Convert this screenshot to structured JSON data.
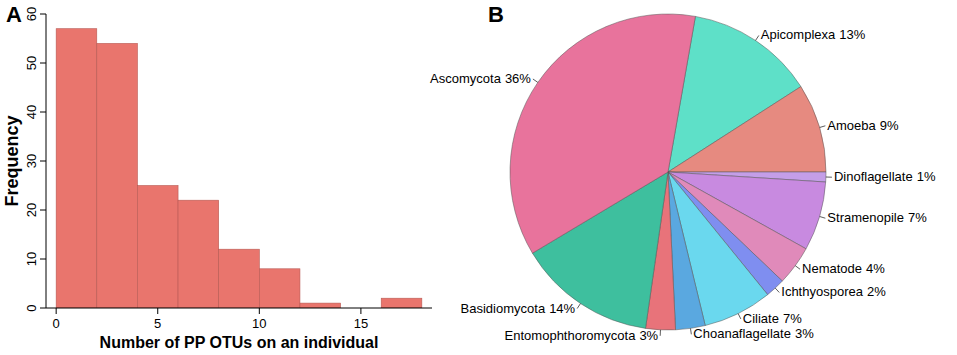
{
  "chart_data": [
    {
      "type": "histogram",
      "title": "A",
      "bins": [
        0,
        2,
        4,
        6,
        8,
        10,
        12,
        14,
        16,
        18
      ],
      "values": [
        57,
        54,
        25,
        22,
        12,
        8,
        1,
        0,
        2
      ],
      "color": "#e9756d",
      "x_label": "Number of PP OTUs on an individual",
      "y_label": "Frequency",
      "xlim": [
        -0.5,
        18.5
      ],
      "ylim": [
        0,
        60
      ],
      "xticks": [
        0,
        5,
        10,
        15
      ],
      "yticks": [
        0,
        10,
        20,
        30,
        40,
        50,
        60
      ],
      "grid": false
    },
    {
      "type": "pie",
      "title": "B",
      "categories": [
        "Apicomplexa",
        "Amoeba",
        "Dinoflagellate",
        "Stramenopile",
        "Nematode",
        "Ichthyosporea",
        "Ciliate",
        "Choanaflagellate",
        "Entomophthoromycota",
        "Basidiomycota",
        "Ascomycota"
      ],
      "values": [
        13,
        9,
        1,
        7,
        4,
        2,
        7,
        3,
        3,
        14,
        36
      ],
      "value_labels": [
        "13%",
        "9%",
        "1%",
        "7%",
        "4%",
        "2%",
        "7%",
        "3%",
        "3%",
        "14%",
        "36%"
      ],
      "colors": [
        "#5ee0c8",
        "#e68a80",
        "#c49ee8",
        "#c88ae0",
        "#e08aba",
        "#7f8ef0",
        "#6ad8ee",
        "#5aa8e0",
        "#e8737a",
        "#3ebf9e",
        "#e8739c"
      ],
      "data_labels": true
    }
  ]
}
